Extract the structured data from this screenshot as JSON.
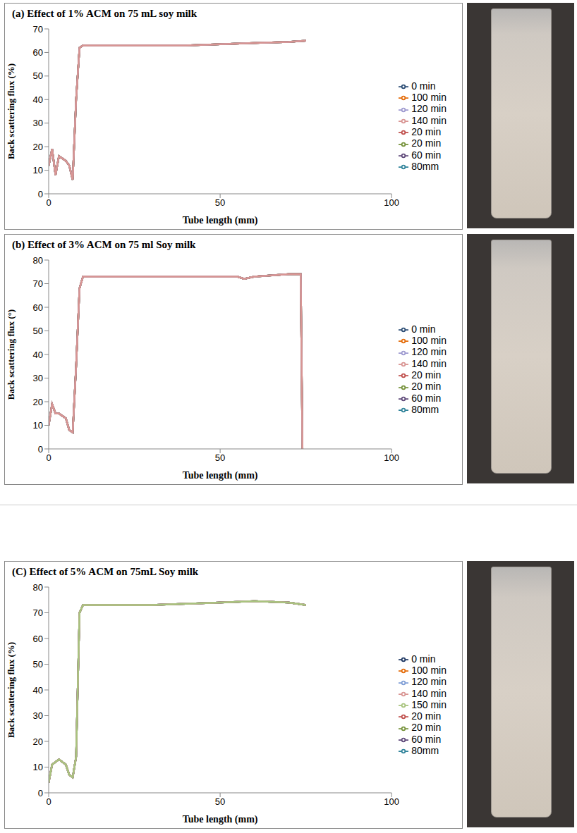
{
  "chart_data": [
    {
      "type": "line",
      "title": "(a) Effect of 1% ACM on 75 mL soy milk",
      "x_label": "Tube length (mm)",
      "y_label": "Back scattering flux (%)",
      "x": [
        0,
        1,
        2,
        3,
        4,
        5,
        6,
        7,
        8,
        9,
        10,
        12,
        20,
        30,
        40,
        50,
        60,
        70,
        75
      ],
      "xlim": [
        0,
        100
      ],
      "xticks": [
        0,
        50,
        100
      ],
      "ylim": [
        0,
        70
      ],
      "yticks": [
        0,
        10,
        20,
        30,
        40,
        50,
        60,
        70
      ],
      "grid": false,
      "legend": "right",
      "series": [
        {
          "name": "0 min",
          "color": "#2c4d75",
          "values": [
            12,
            19,
            8,
            16,
            15,
            14,
            12,
            6,
            40,
            62,
            63,
            63,
            63,
            63,
            63,
            63.5,
            64,
            64.5,
            65
          ]
        },
        {
          "name": "20 min",
          "color": "#c0504d",
          "values": [
            12,
            19,
            8,
            16,
            15,
            14,
            12,
            6,
            40,
            62,
            63,
            63,
            63,
            63,
            63,
            63.5,
            64,
            64.5,
            65
          ]
        },
        {
          "name": "20 min",
          "color": "#77933c",
          "values": [
            12,
            19,
            8,
            16,
            15,
            14,
            12,
            6,
            40,
            62,
            63,
            63,
            63,
            63,
            63,
            63.5,
            64,
            64.5,
            65
          ]
        },
        {
          "name": "60 min",
          "color": "#5f497a",
          "values": [
            12,
            19,
            8,
            16,
            15,
            14,
            12,
            6,
            40,
            62,
            63,
            63,
            63,
            63,
            63,
            63.5,
            64,
            64.5,
            65
          ]
        },
        {
          "name": "80mm",
          "color": "#31849b",
          "values": [
            12,
            19,
            8,
            16,
            15,
            14,
            12,
            6,
            40,
            62,
            63,
            63,
            63,
            63,
            63,
            63.5,
            64,
            64.5,
            65
          ]
        },
        {
          "name": "100 min",
          "color": "#e46c0a",
          "values": [
            12,
            19,
            8,
            16,
            15,
            14,
            12,
            6,
            40,
            62,
            63,
            63,
            63,
            63,
            63,
            63.5,
            64,
            64.5,
            65
          ]
        },
        {
          "name": "120 min",
          "color": "#9e9ad0",
          "values": [
            12,
            19,
            8,
            16,
            15,
            14,
            12,
            6,
            40,
            62,
            63,
            63,
            63,
            63,
            63,
            63.5,
            64,
            64.5,
            65
          ]
        },
        {
          "name": "140 min",
          "color": "#d99694",
          "values": [
            12,
            19,
            8,
            16,
            15,
            14,
            12,
            6,
            40,
            62,
            63,
            63,
            63,
            63,
            63,
            63.5,
            64,
            64.5,
            65
          ]
        }
      ]
    },
    {
      "type": "line",
      "title": "(b) Effect of 3% ACM on 75 ml Soy milk",
      "x_label": "Tube length (mm)",
      "y_label": "Back scattering flux (°)",
      "x": [
        0,
        1,
        2,
        3,
        4,
        5,
        6,
        7,
        8,
        9,
        10,
        12,
        20,
        30,
        40,
        50,
        55,
        57,
        60,
        70,
        73.5,
        74
      ],
      "xlim": [
        0,
        100
      ],
      "xticks": [
        0,
        50,
        100
      ],
      "ylim": [
        0,
        80
      ],
      "yticks": [
        0,
        10,
        20,
        30,
        40,
        50,
        60,
        70,
        80
      ],
      "grid": false,
      "legend": "right",
      "series": [
        {
          "name": "0 min",
          "color": "#2c4d75",
          "values": [
            10,
            19,
            15,
            15,
            14,
            13,
            8,
            7,
            35,
            68,
            73,
            73,
            73,
            73,
            73,
            73,
            73,
            72,
            73,
            74,
            74,
            0
          ]
        },
        {
          "name": "20 min",
          "color": "#c0504d",
          "values": [
            10,
            19,
            15,
            15,
            14,
            13,
            8,
            7,
            35,
            68,
            73,
            73,
            73,
            73,
            73,
            73,
            73,
            72,
            73,
            74,
            74,
            0
          ]
        },
        {
          "name": "20 min",
          "color": "#77933c",
          "values": [
            10,
            19,
            15,
            15,
            14,
            13,
            8,
            7,
            35,
            68,
            73,
            73,
            73,
            73,
            73,
            73,
            73,
            72,
            73,
            74,
            74,
            0
          ]
        },
        {
          "name": "60 min",
          "color": "#5f497a",
          "values": [
            10,
            19,
            15,
            15,
            14,
            13,
            8,
            7,
            35,
            68,
            73,
            73,
            73,
            73,
            73,
            73,
            73,
            72,
            73,
            74,
            74,
            0
          ]
        },
        {
          "name": "80mm",
          "color": "#31849b",
          "values": [
            10,
            19,
            15,
            15,
            14,
            13,
            8,
            7,
            35,
            68,
            73,
            73,
            73,
            73,
            73,
            73,
            73,
            72,
            73,
            74,
            74,
            0
          ]
        },
        {
          "name": "100 min",
          "color": "#e46c0a",
          "values": [
            10,
            19,
            15,
            15,
            14,
            13,
            8,
            7,
            35,
            68,
            73,
            73,
            73,
            73,
            73,
            73,
            73,
            72,
            73,
            74,
            74,
            0
          ]
        },
        {
          "name": "120 min",
          "color": "#9e9ad0",
          "values": [
            10,
            19,
            15,
            15,
            14,
            13,
            8,
            7,
            35,
            68,
            73,
            73,
            73,
            73,
            73,
            73,
            73,
            72,
            73,
            74,
            74,
            0
          ]
        },
        {
          "name": "140 min",
          "color": "#d99694",
          "values": [
            10,
            19,
            15,
            15,
            14,
            13,
            8,
            7,
            35,
            68,
            73,
            73,
            73,
            73,
            73,
            73,
            73,
            72,
            73,
            74,
            74,
            0
          ]
        }
      ]
    },
    {
      "type": "line",
      "title": "(C) Effect of 5% ACM on 75mL Soy milk",
      "x_label": "Tube length (mm)",
      "y_label": "Back scattering flux (%)",
      "x": [
        0,
        1,
        2,
        3,
        4,
        5,
        6,
        7,
        8,
        9,
        10,
        12,
        20,
        30,
        40,
        50,
        60,
        70,
        75
      ],
      "xlim": [
        0,
        100
      ],
      "xticks": [
        0,
        50,
        100
      ],
      "ylim": [
        0,
        80
      ],
      "yticks": [
        0,
        10,
        20,
        30,
        40,
        50,
        60,
        70,
        80
      ],
      "grid": false,
      "legend": "right",
      "series": [
        {
          "name": "0 min",
          "color": "#1f3864",
          "values": [
            4,
            11,
            12,
            13,
            12,
            11,
            7,
            6,
            14,
            70,
            73,
            73,
            73,
            73,
            73.5,
            74,
            74.5,
            74,
            73
          ]
        },
        {
          "name": "20 min",
          "color": "#c0504d",
          "values": [
            4,
            11,
            12,
            13,
            12,
            11,
            7,
            6,
            14,
            70,
            73,
            73,
            73,
            73,
            73.5,
            74,
            74.5,
            74,
            73
          ]
        },
        {
          "name": "20 min",
          "color": "#77933c",
          "values": [
            4,
            11,
            12,
            13,
            12,
            11,
            7,
            6,
            14,
            70,
            73,
            73,
            73,
            73,
            73.5,
            74,
            74.5,
            74,
            73
          ]
        },
        {
          "name": "60 min",
          "color": "#5f497a",
          "values": [
            4,
            11,
            12,
            13,
            12,
            11,
            7,
            6,
            14,
            70,
            73,
            73,
            73,
            73,
            73.5,
            74,
            74.5,
            74,
            73
          ]
        },
        {
          "name": "80mm",
          "color": "#31849b",
          "values": [
            4,
            11,
            12,
            13,
            12,
            11,
            7,
            6,
            14,
            70,
            73,
            73,
            73,
            73,
            73.5,
            74,
            74.5,
            74,
            73
          ]
        },
        {
          "name": "100 min",
          "color": "#e46c0a",
          "values": [
            4,
            11,
            12,
            13,
            12,
            11,
            7,
            6,
            14,
            70,
            73,
            73,
            73,
            73,
            73.5,
            74,
            74.5,
            74,
            73
          ]
        },
        {
          "name": "120 min",
          "color": "#7f9ed6",
          "values": [
            4,
            11,
            12,
            13,
            12,
            11,
            7,
            6,
            14,
            70,
            73,
            73,
            73,
            73,
            73.5,
            74,
            74.5,
            74,
            73
          ]
        },
        {
          "name": "140 min",
          "color": "#d99694",
          "values": [
            4,
            11,
            12,
            13,
            12,
            11,
            7,
            6,
            14,
            70,
            73,
            73,
            73,
            73,
            73.5,
            74,
            74.5,
            74,
            73
          ]
        },
        {
          "name": "150 min",
          "color": "#a9c47f",
          "values": [
            4,
            11,
            12,
            13,
            12,
            11,
            7,
            6,
            14,
            70,
            73,
            73,
            73,
            73,
            73.5,
            74,
            74.5,
            74,
            73
          ]
        }
      ]
    }
  ]
}
